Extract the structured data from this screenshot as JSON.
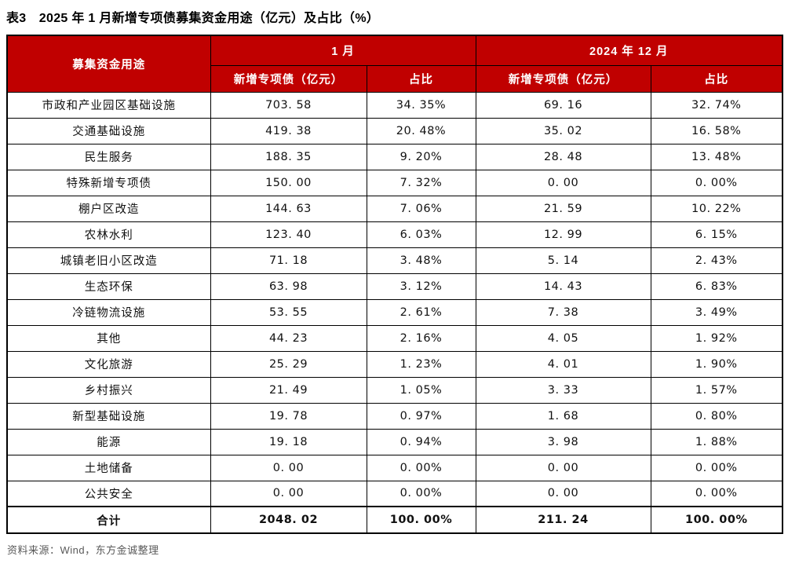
{
  "page": {
    "title": "表3　2025 年 1 月新增专项债募集资金用途（亿元）及占比（%）",
    "source_note": "资料来源：Wind，东方金诚整理"
  },
  "colors": {
    "header_bg": "#C00000",
    "header_text": "#FFFFFF",
    "border": "#000000",
    "title_text": "#000000",
    "source_text": "#595959"
  },
  "table": {
    "col_header_usage": "募集资金用途",
    "group_headers": [
      "1 月",
      "2024 年 12 月"
    ],
    "sub_headers": [
      "新增专项债（亿元）",
      "占比",
      "新增专项债（亿元）",
      "占比"
    ],
    "rows": [
      {
        "label": "市政和产业园区基础设施",
        "values": [
          "703. 58",
          "34. 35%",
          "69. 16",
          "32. 74%"
        ]
      },
      {
        "label": "交通基础设施",
        "values": [
          "419. 38",
          "20. 48%",
          "35. 02",
          "16. 58%"
        ]
      },
      {
        "label": "民生服务",
        "values": [
          "188. 35",
          "9. 20%",
          "28. 48",
          "13. 48%"
        ]
      },
      {
        "label": "特殊新增专项债",
        "values": [
          "150. 00",
          "7. 32%",
          "0. 00",
          "0. 00%"
        ]
      },
      {
        "label": "棚户区改造",
        "values": [
          "144. 63",
          "7. 06%",
          "21. 59",
          "10. 22%"
        ]
      },
      {
        "label": "农林水利",
        "values": [
          "123. 40",
          "6. 03%",
          "12. 99",
          "6. 15%"
        ]
      },
      {
        "label": "城镇老旧小区改造",
        "values": [
          "71. 18",
          "3. 48%",
          "5. 14",
          "2. 43%"
        ]
      },
      {
        "label": "生态环保",
        "values": [
          "63. 98",
          "3. 12%",
          "14. 43",
          "6. 83%"
        ]
      },
      {
        "label": "冷链物流设施",
        "values": [
          "53. 55",
          "2. 61%",
          "7. 38",
          "3. 49%"
        ]
      },
      {
        "label": "其他",
        "values": [
          "44. 23",
          "2. 16%",
          "4. 05",
          "1. 92%"
        ]
      },
      {
        "label": "文化旅游",
        "values": [
          "25. 29",
          "1. 23%",
          "4. 01",
          "1. 90%"
        ]
      },
      {
        "label": "乡村振兴",
        "values": [
          "21. 49",
          "1. 05%",
          "3. 33",
          "1. 57%"
        ]
      },
      {
        "label": "新型基础设施",
        "values": [
          "19. 78",
          "0. 97%",
          "1. 68",
          "0. 80%"
        ]
      },
      {
        "label": "能源",
        "values": [
          "19. 18",
          "0. 94%",
          "3. 98",
          "1. 88%"
        ]
      },
      {
        "label": "土地储备",
        "values": [
          "0. 00",
          "0. 00%",
          "0. 00",
          "0. 00%"
        ]
      },
      {
        "label": "公共安全",
        "values": [
          "0. 00",
          "0. 00%",
          "0. 00",
          "0. 00%"
        ]
      }
    ],
    "total_row": {
      "label": "合计",
      "values": [
        "2048. 02",
        "100. 00%",
        "211. 24",
        "100. 00%"
      ]
    }
  },
  "chart_data": {
    "type": "table",
    "title": "表3 2025年1月新增专项债募集资金用途（亿元）及占比（%）",
    "columns": [
      "募集资金用途",
      "1月 新增专项债（亿元）",
      "1月 占比(%)",
      "2024年12月 新增专项债（亿元）",
      "2024年12月 占比(%)"
    ],
    "categories": [
      "市政和产业园区基础设施",
      "交通基础设施",
      "民生服务",
      "特殊新增专项债",
      "棚户区改造",
      "农林水利",
      "城镇老旧小区改造",
      "生态环保",
      "冷链物流设施",
      "其他",
      "文化旅游",
      "乡村振兴",
      "新型基础设施",
      "能源",
      "土地储备",
      "公共安全"
    ],
    "series": [
      {
        "name": "1月 新增专项债（亿元）",
        "values": [
          703.58,
          419.38,
          188.35,
          150.0,
          144.63,
          123.4,
          71.18,
          63.98,
          53.55,
          44.23,
          25.29,
          21.49,
          19.78,
          19.18,
          0.0,
          0.0
        ]
      },
      {
        "name": "1月 占比(%)",
        "values": [
          34.35,
          20.48,
          9.2,
          7.32,
          7.06,
          6.03,
          3.48,
          3.12,
          2.61,
          2.16,
          1.23,
          1.05,
          0.97,
          0.94,
          0.0,
          0.0
        ]
      },
      {
        "name": "2024年12月 新增专项债（亿元）",
        "values": [
          69.16,
          35.02,
          28.48,
          0.0,
          21.59,
          12.99,
          5.14,
          14.43,
          7.38,
          4.05,
          4.01,
          3.33,
          1.68,
          3.98,
          0.0,
          0.0
        ]
      },
      {
        "name": "2024年12月 占比(%)",
        "values": [
          32.74,
          16.58,
          13.48,
          0.0,
          10.22,
          6.15,
          2.43,
          6.83,
          3.49,
          1.92,
          1.9,
          1.57,
          0.8,
          1.88,
          0.0,
          0.0
        ]
      }
    ],
    "totals": {
      "label": "合计",
      "jan_amount": 2048.02,
      "jan_share_pct": 100.0,
      "dec_amount": 211.24,
      "dec_share_pct": 100.0
    },
    "source": "资料来源：Wind，东方金诚整理"
  }
}
